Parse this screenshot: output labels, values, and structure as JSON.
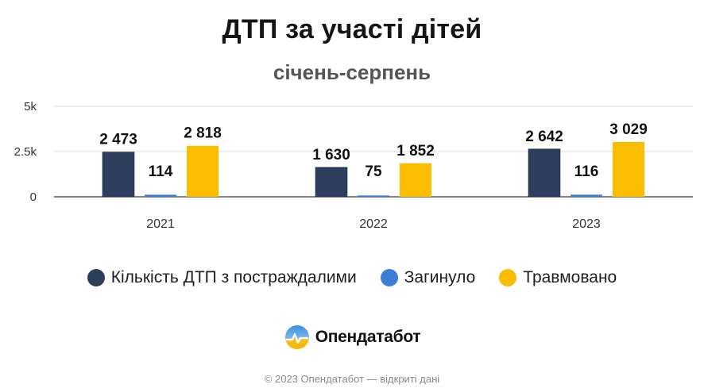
{
  "title": "ДТП за участі дітей",
  "subtitle": "січень-серпень",
  "chart_data": {
    "type": "bar",
    "categories": [
      "2021",
      "2022",
      "2023"
    ],
    "series": [
      {
        "name": "Кількість ДТП з постраждалими",
        "values": [
          2473,
          1630,
          2642
        ],
        "labels": [
          "2 473",
          "1 630",
          "2 642"
        ],
        "color": "#2d3d5e"
      },
      {
        "name": "Загинуло",
        "values": [
          114,
          75,
          116
        ],
        "labels": [
          "114",
          "75",
          "116"
        ],
        "color": "#3c7ed6"
      },
      {
        "name": "Травмовано",
        "values": [
          2818,
          1852,
          3029
        ],
        "labels": [
          "2 818",
          "1 852",
          "3 029"
        ],
        "color": "#fbbd00"
      }
    ],
    "y_ticks": [
      {
        "value": 0,
        "label": "0"
      },
      {
        "value": 2500,
        "label": "2.5k"
      },
      {
        "value": 5000,
        "label": "5k"
      }
    ],
    "ylim": [
      0,
      5000
    ],
    "grid": true,
    "legend_position": "bottom"
  },
  "brand": {
    "name": "Опендатабот"
  },
  "footer": "© 2023 Опендатабот — відкриті дані"
}
